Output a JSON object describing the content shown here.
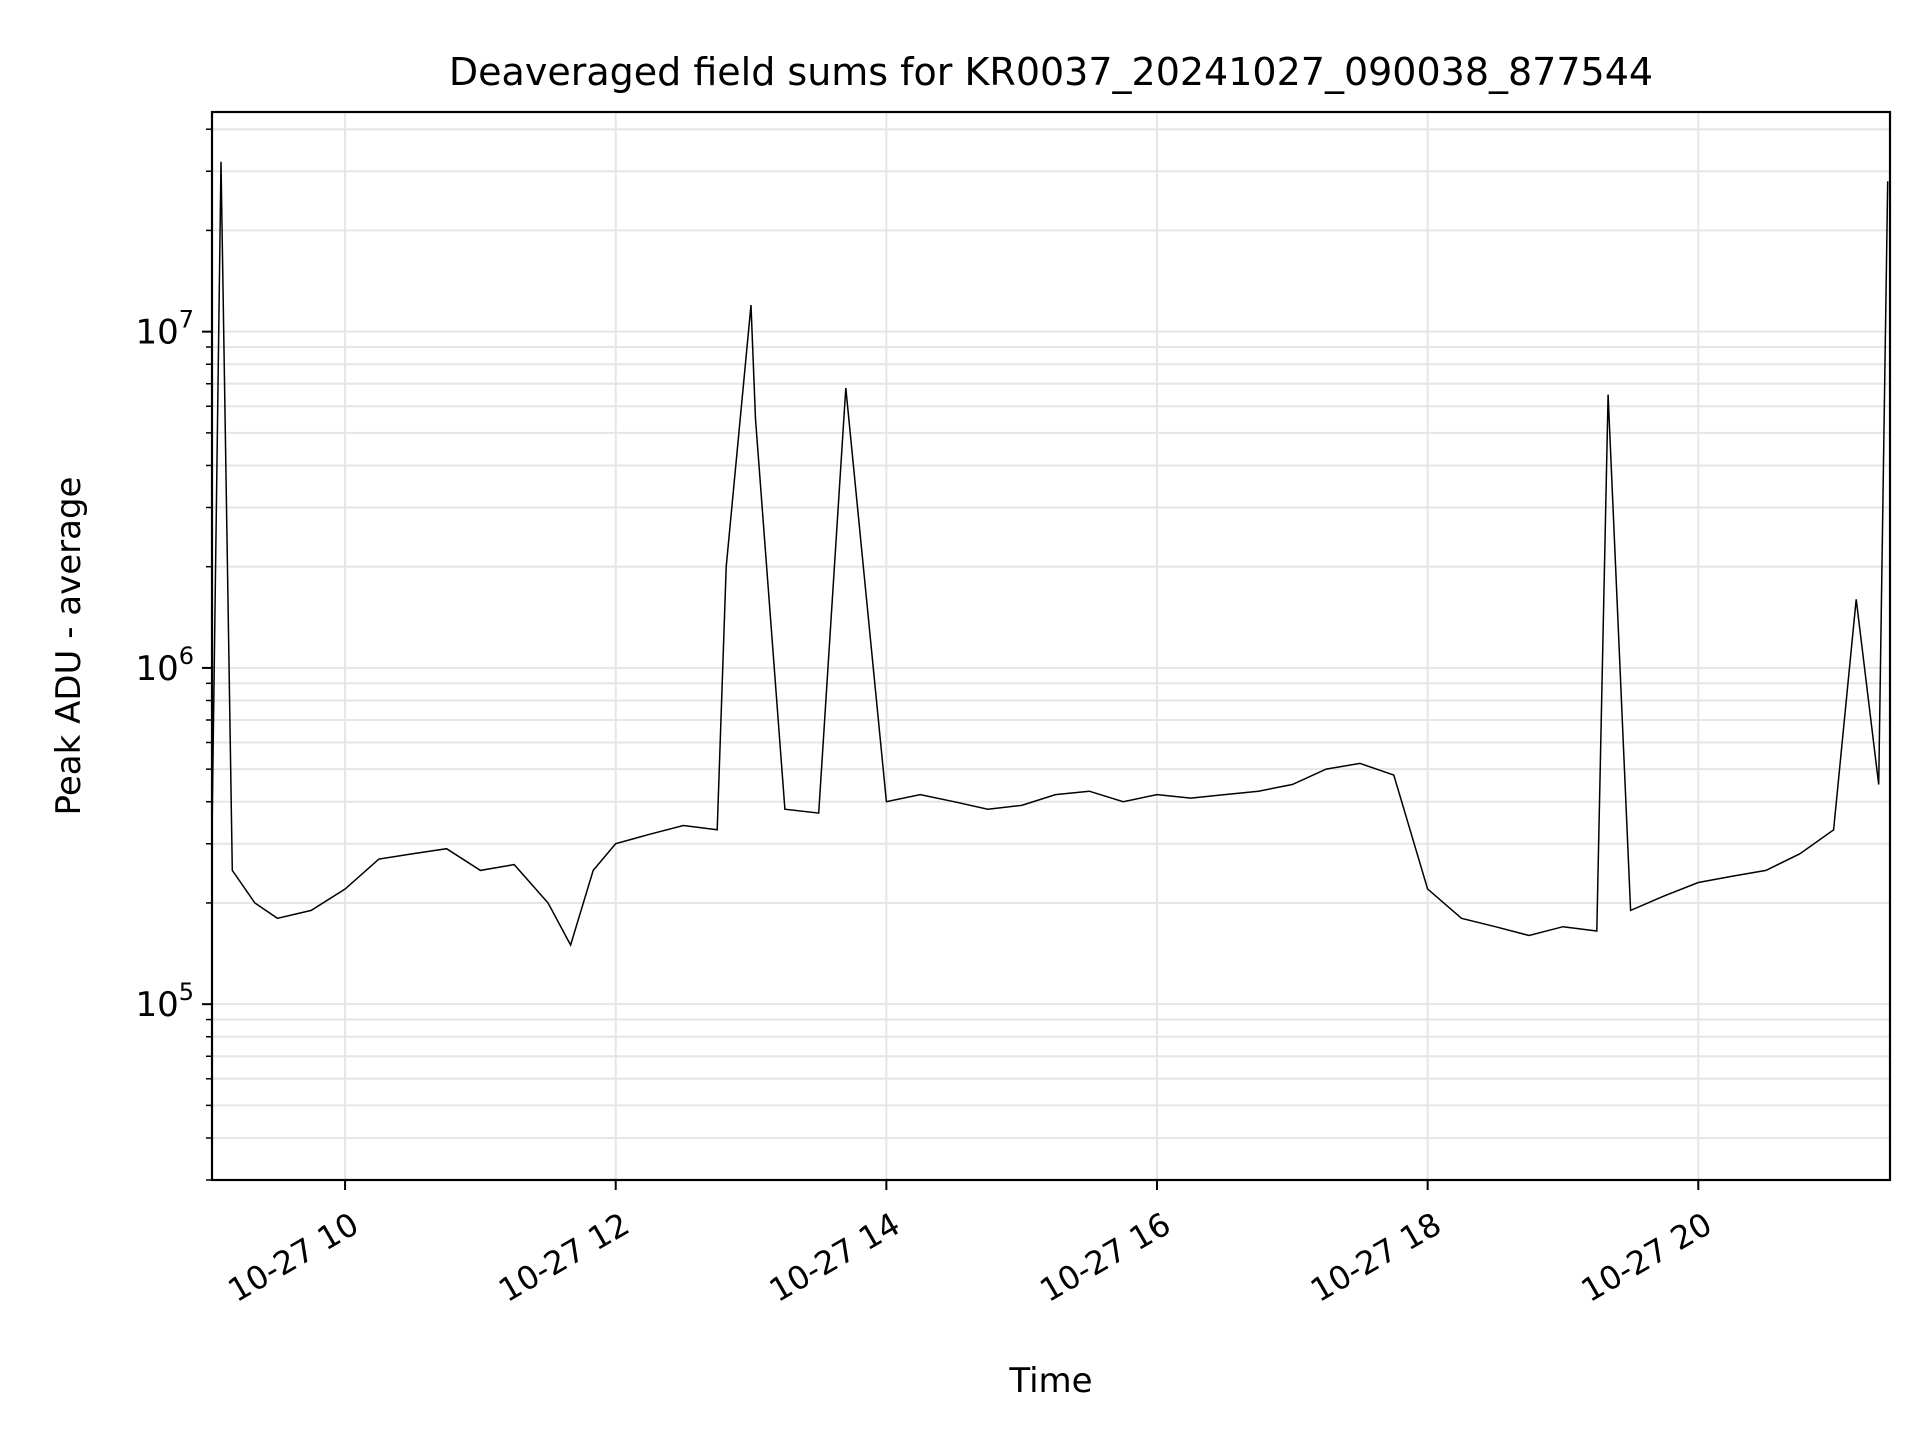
{
  "chart_data": {
    "type": "line",
    "title": "Deaveraged field sums for KR0037_20241027_090038_877544",
    "xlabel": "Time",
    "ylabel": "Peak ADU - average",
    "yscale": "log",
    "ylim": [
      30000,
      45000000
    ],
    "xlim": [
      "2024-10-27 09:01",
      "2024-10-27 21:25"
    ],
    "grid": true,
    "line_color": "#000000",
    "x_ticks": [
      "2024-10-27 10:00",
      "2024-10-27 12:00",
      "2024-10-27 14:00",
      "2024-10-27 16:00",
      "2024-10-27 18:00",
      "2024-10-27 20:00"
    ],
    "x_tick_labels": [
      "10-27 10",
      "10-27 12",
      "10-27 14",
      "10-27 16",
      "10-27 18",
      "10-27 20"
    ],
    "y_ticks": [
      {
        "base": "10",
        "exp": "5",
        "value": 100000
      },
      {
        "base": "10",
        "exp": "6",
        "value": 1000000
      },
      {
        "base": "10",
        "exp": "7",
        "value": 10000000
      }
    ],
    "series": [
      {
        "x": [
          "2024-10-27 09:01",
          "2024-10-27 09:05",
          "2024-10-27 09:10",
          "2024-10-27 09:20",
          "2024-10-27 09:30",
          "2024-10-27 09:45",
          "2024-10-27 10:00",
          "2024-10-27 10:15",
          "2024-10-27 10:30",
          "2024-10-27 10:45",
          "2024-10-27 11:00",
          "2024-10-27 11:15",
          "2024-10-27 11:30",
          "2024-10-27 11:40",
          "2024-10-27 11:50",
          "2024-10-27 12:00",
          "2024-10-27 12:15",
          "2024-10-27 12:30",
          "2024-10-27 12:45",
          "2024-10-27 12:49",
          "2024-10-27 13:00",
          "2024-10-27 13:02",
          "2024-10-27 13:15",
          "2024-10-27 13:30",
          "2024-10-27 13:42",
          "2024-10-27 14:00",
          "2024-10-27 14:15",
          "2024-10-27 14:30",
          "2024-10-27 14:45",
          "2024-10-27 15:00",
          "2024-10-27 15:15",
          "2024-10-27 15:30",
          "2024-10-27 15:45",
          "2024-10-27 16:00",
          "2024-10-27 16:15",
          "2024-10-27 16:30",
          "2024-10-27 16:45",
          "2024-10-27 17:00",
          "2024-10-27 17:15",
          "2024-10-27 17:30",
          "2024-10-27 17:45",
          "2024-10-27 18:00",
          "2024-10-27 18:15",
          "2024-10-27 18:30",
          "2024-10-27 18:45",
          "2024-10-27 19:00",
          "2024-10-27 19:15",
          "2024-10-27 19:20",
          "2024-10-27 19:30",
          "2024-10-27 19:45",
          "2024-10-27 20:00",
          "2024-10-27 20:15",
          "2024-10-27 20:30",
          "2024-10-27 20:45",
          "2024-10-27 21:00",
          "2024-10-27 21:10",
          "2024-10-27 21:20",
          "2024-10-27 21:24"
        ],
        "values": [
          320000,
          32000000,
          250000,
          200000,
          180000,
          190000,
          220000,
          270000,
          280000,
          290000,
          250000,
          260000,
          200000,
          150000,
          250000,
          300000,
          320000,
          340000,
          330000,
          2000000,
          12000000,
          5500000,
          380000,
          370000,
          6800000,
          400000,
          420000,
          400000,
          380000,
          390000,
          420000,
          430000,
          400000,
          420000,
          410000,
          420000,
          430000,
          450000,
          500000,
          520000,
          480000,
          220000,
          180000,
          170000,
          160000,
          170000,
          165000,
          6500000,
          190000,
          210000,
          230000,
          240000,
          250000,
          280000,
          330000,
          1600000,
          450000,
          28000000
        ]
      }
    ]
  }
}
